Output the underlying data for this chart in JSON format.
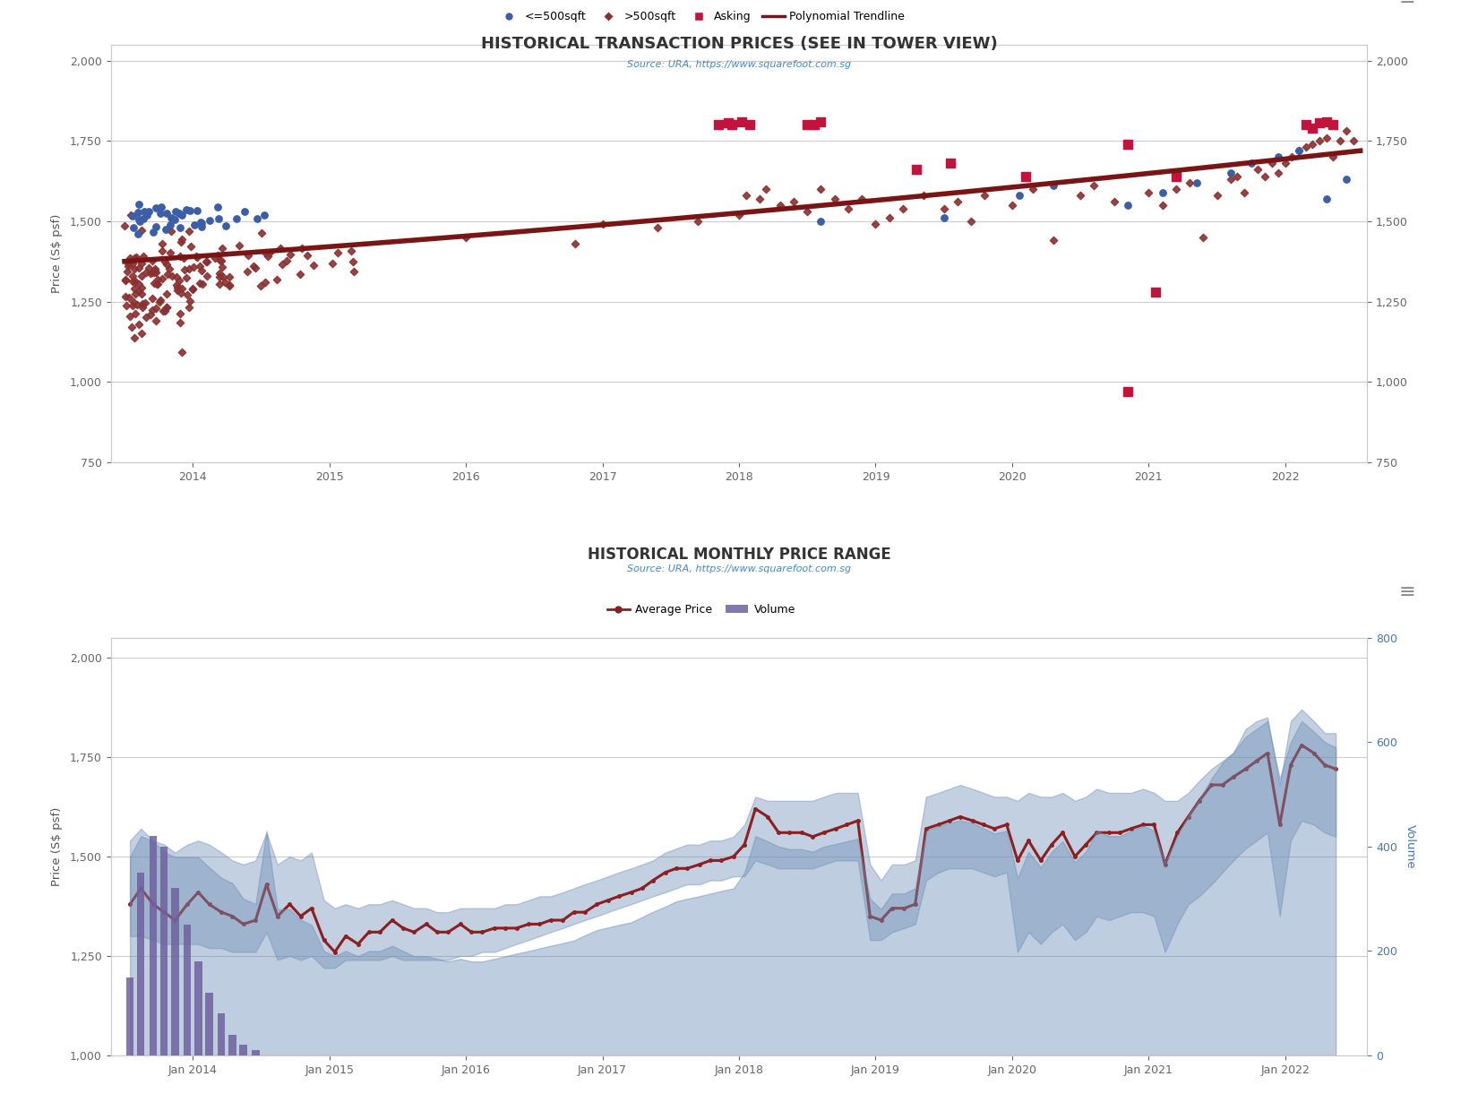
{
  "title1_part1": "HISTORICAL TRANSACTION PRICES (SEE IN ",
  "title1_red": "TOWER VIEW",
  "title1_part2": ")",
  "source_text": "Source: URA, ",
  "source_url": "https://www.squarefoot.com.sg",
  "title2": "HISTORICAL MONTHLY PRICE RANGE",
  "ylabel1": "Price (S$ psf)",
  "ylabel2": "Price (S$ psf)",
  "ylabel2_right": "Volume",
  "bg_color": "#ffffff",
  "scatter_small_color": "#3b5ea6",
  "scatter_large_color": "#8b3030",
  "asking_color": "#c0143c",
  "trendline_color": "#7a1515",
  "avg_price_color": "#8b2020",
  "volume_fill_color": "#7090b8",
  "volume_bar_color": "#7060a0",
  "grid_color": "#cccccc",
  "tick_color": "#666666",
  "title_color": "#333333",
  "tower_view_color": "#c0143c",
  "hamburger_color": "#888888",
  "source_color": "#4488cc",
  "right_axis_color": "#4477bb"
}
